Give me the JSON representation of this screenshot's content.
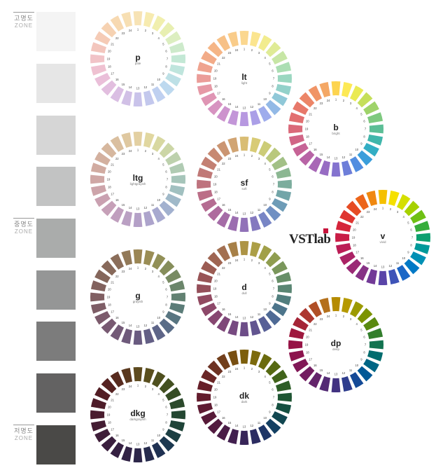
{
  "zones": [
    {
      "label": "고명도",
      "sub": "ZONE"
    },
    {
      "label": "중명도",
      "sub": "ZONE"
    },
    {
      "label": "저명도",
      "sub": "ZONE"
    }
  ],
  "grays": [
    "#f4f4f4",
    "#e6e6e6",
    "#d6d6d6",
    "#c2c3c3",
    "#aaacab",
    "#959696",
    "#7c7c7c",
    "#636262",
    "#4a4947"
  ],
  "logo": "VSTlab",
  "logo_accent": "#c8143c",
  "wheels": [
    {
      "code": "p",
      "name": "pale",
      "colors": [
        "#f7e3b5",
        "#f7ebb0",
        "#f1efae",
        "#e8efb1",
        "#dceec0",
        "#cdeacb",
        "#c3e8d5",
        "#bfe5dd",
        "#bde0e6",
        "#bdd9ef",
        "#bfd0f0",
        "#c3c8ed",
        "#c9c3ea",
        "#d1c0e6",
        "#dabee3",
        "#e2bedf",
        "#eabfd9",
        "#efc1d1",
        "#f1c3c7",
        "#f3c6bd",
        "#f5cbb6",
        "#f6d2b2",
        "#f7d9b1",
        "#f7dfb3"
      ]
    },
    {
      "code": "lt",
      "name": "light",
      "colors": [
        "#fbd78f",
        "#fbe58f",
        "#f2ec8e",
        "#dfeb96",
        "#c7e6a5",
        "#abdeb3",
        "#9bd7c0",
        "#93d1ca",
        "#90c8d8",
        "#93b9e6",
        "#9eacec",
        "#ab9fe7",
        "#b798e0",
        "#c396d8",
        "#cd93cd",
        "#d793c1",
        "#df95b4",
        "#e699a6",
        "#eb9d99",
        "#efa38f",
        "#f2ab88",
        "#f5b586",
        "#f7c187",
        "#f9cc8a"
      ]
    },
    {
      "code": "b",
      "name": "bright",
      "colors": [
        "#fdd44f",
        "#fde955",
        "#eaea53",
        "#c5df5a",
        "#9fd36a",
        "#7ec97f",
        "#5cbe96",
        "#40b6ab",
        "#33aec4",
        "#3a9edb",
        "#518de0",
        "#6d7ed9",
        "#8473cf",
        "#976cc3",
        "#a867b6",
        "#b864a6",
        "#c66396",
        "#d16586",
        "#da6979",
        "#e26f70",
        "#e7786a",
        "#ec8567",
        "#f09466",
        "#f4a765"
      ]
    },
    {
      "code": "ltg",
      "name": "lightgrayish",
      "colors": [
        "#e3d0a2",
        "#e1d7a0",
        "#d8d8a1",
        "#ccd6a6",
        "#bdd1ad",
        "#b0cbb3",
        "#a6c5ba",
        "#a1c0c0",
        "#a0b9c9",
        "#a2b1cf",
        "#a7a9cf",
        "#ada4cc",
        "#b4a0c7",
        "#baa0c3",
        "#c09fbe",
        "#c6a0b8",
        "#caa1b1",
        "#cda4aa",
        "#cfa7a5",
        "#d1aba1",
        "#d3b09f",
        "#d6b79e",
        "#dabf9f",
        "#dfc8a0"
      ]
    },
    {
      "code": "sf",
      "name": "soft",
      "colors": [
        "#d9bd74",
        "#d8cb76",
        "#cccc77",
        "#b9c87c",
        "#a2c086",
        "#8cb792",
        "#7cad9d",
        "#72a5a8",
        "#6e9cb7",
        "#7090c3",
        "#7885c5",
        "#8479bf",
        "#9172b8",
        "#9c6eb0",
        "#a56ca7",
        "#ae6b9d",
        "#b56c92",
        "#bb6e87",
        "#be737e",
        "#c07977",
        "#c38073",
        "#c78972",
        "#cb9572",
        "#d1a473"
      ]
    },
    {
      "code": "v",
      "name": "vivid",
      "colors": [
        "#f5c000",
        "#f5e000",
        "#d5df00",
        "#a6d100",
        "#6fc014",
        "#36ad3c",
        "#0ca070",
        "#00999a",
        "#0090b5",
        "#0079c6",
        "#1b66c6",
        "#3e53b8",
        "#5a45a8",
        "#723a97",
        "#873286",
        "#9a2a75",
        "#ab2265",
        "#bb1c55",
        "#c91d46",
        "#d5253b",
        "#df3530",
        "#e64b24",
        "#ec651a",
        "#f08810"
      ]
    },
    {
      "code": "g",
      "name": "grayish",
      "colors": [
        "#9b8654",
        "#9a8d55",
        "#929057",
        "#868e5b",
        "#788b63",
        "#6b866b",
        "#628172",
        "#5b7c78",
        "#587581",
        "#596c87",
        "#5e6588",
        "#635f85",
        "#695b80",
        "#6e5a7b",
        "#735a77",
        "#785a72",
        "#7c5b6c",
        "#7e5d66",
        "#805f62",
        "#82625e",
        "#84665b",
        "#87695a",
        "#8b6e5a",
        "#927958"
      ]
    },
    {
      "code": "d",
      "name": "dull",
      "colors": [
        "#ad9445",
        "#ac9f47",
        "#a1a049",
        "#8f9d4f",
        "#7a975b",
        "#678f68",
        "#5a8673",
        "#517e7e",
        "#4d758b",
        "#4f6a95",
        "#575f97",
        "#625590",
        "#6d4d88",
        "#774a81",
        "#7f4879",
        "#874771",
        "#8d4869",
        "#924a61",
        "#954f5a",
        "#985456",
        "#9b5c53",
        "#9f6552",
        "#a37051",
        "#a78048"
      ]
    },
    {
      "code": "dp",
      "name": "deep",
      "colors": [
        "#b58b00",
        "#b59900",
        "#9c9a00",
        "#7c9300",
        "#5a8a10",
        "#337e2c",
        "#137350",
        "#006c6e",
        "#006685",
        "#005896",
        "#144a97",
        "#2e3d8d",
        "#423381",
        "#542b75",
        "#64246b",
        "#731d61",
        "#811857",
        "#8c134d",
        "#961245",
        "#9e183e",
        "#a52537",
        "#ac3730",
        "#b04f26",
        "#b4701b"
      ]
    },
    {
      "code": "dkg",
      "name": "darkgrayish",
      "colors": [
        "#5d4a1e",
        "#5a4f1e",
        "#4f501f",
        "#435021",
        "#364d25",
        "#2c4a2c",
        "#244732",
        "#1f4438",
        "#1c3f43",
        "#1c3850",
        "#1f3152",
        "#262b4d",
        "#2c2649",
        "#312245",
        "#352042",
        "#3a1f3e",
        "#3f1e39",
        "#441d33",
        "#491c2e",
        "#4e1c29",
        "#521d24",
        "#552221",
        "#582b1f",
        "#5a381e"
      ]
    },
    {
      "code": "dk",
      "name": "dark",
      "colors": [
        "#7d5f0c",
        "#7c6a0c",
        "#6b6b0e",
        "#566912",
        "#41641b",
        "#2d5d27",
        "#1f5634",
        "#154f41",
        "#114751",
        "#133f62",
        "#1d3567",
        "#2c2c61",
        "#382558",
        "#42204f",
        "#4a1d47",
        "#521b40",
        "#581b39",
        "#5e1b32",
        "#631c2d",
        "#661f29",
        "#6a2626",
        "#6d3223",
        "#723f1b",
        "#784f12"
      ]
    }
  ]
}
